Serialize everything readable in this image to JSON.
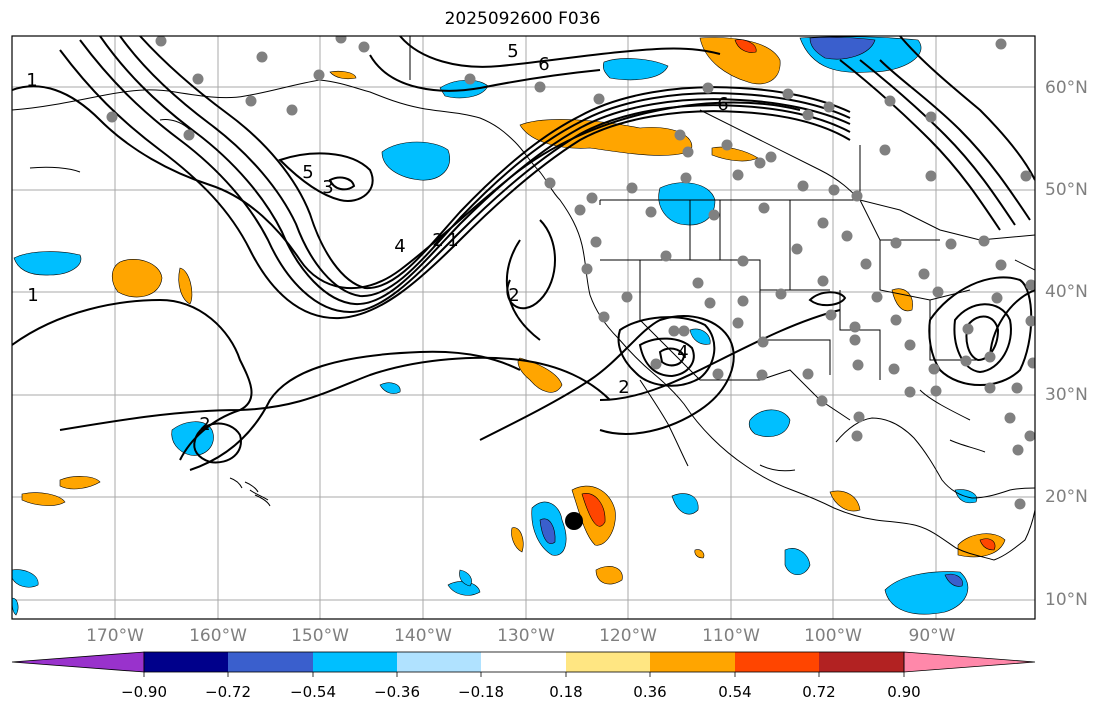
{
  "title": "2025092600 F036",
  "map": {
    "lon_labels": [
      "170°W",
      "160°W",
      "150°W",
      "140°W",
      "130°W",
      "120°W",
      "110°W",
      "100°W",
      "90°W"
    ],
    "lat_labels": [
      "60°N",
      "50°N",
      "40°N",
      "30°N",
      "20°N",
      "10°N"
    ],
    "contour_labels": [
      "1",
      "2",
      "3",
      "4",
      "5",
      "6"
    ],
    "colors": {
      "contour": "#000000",
      "grid": "#a9a9a9",
      "station_dot": "#808080",
      "storm_center": "#000000",
      "coast": "#000000"
    }
  },
  "colorbar": {
    "ticks": [
      "−0.90",
      "−0.72",
      "−0.54",
      "−0.36",
      "−0.18",
      "0.18",
      "0.36",
      "0.54",
      "0.72",
      "0.90"
    ],
    "colors": [
      "#9932cc",
      "#00008b",
      "#3a5fcd",
      "#00bfff",
      "#b0e2ff",
      "#ffffff",
      "#ffe682",
      "#ffa500",
      "#ff4500",
      "#b22222",
      "#ff88aa"
    ]
  }
}
